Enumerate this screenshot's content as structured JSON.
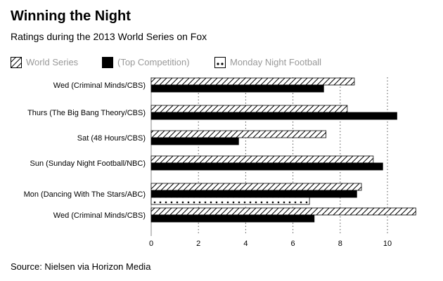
{
  "title": "Winning the Night",
  "subtitle": "Ratings during the 2013 World Series on Fox",
  "source": "Source: Nielsen via Horizon Media",
  "legend": [
    {
      "name": "World Series",
      "pattern": "hatch"
    },
    {
      "name": "(Top Competition)",
      "pattern": "solid"
    },
    {
      "name": "Monday Night Football",
      "pattern": "dots"
    }
  ],
  "chart_data": {
    "type": "bar",
    "orientation": "horizontal",
    "title": "Winning the Night",
    "subtitle": "Ratings during the 2013 World Series on Fox",
    "xlabel": "",
    "ylabel": "",
    "xlim": [
      0,
      11.4
    ],
    "xticks": [
      0,
      2,
      4,
      6,
      8,
      10
    ],
    "grid": "vertical dotted",
    "legend_position": "top-left",
    "categories": [
      "Wed (Criminal Minds/CBS)",
      "Thurs (The Big Bang Theory/CBS)",
      "Sat (48 Hours/CBS)",
      "Sun (Sunday Night Football/NBC)",
      "Mon (Dancing With The Stars/ABC)",
      "Wed (Criminal Minds/CBS)"
    ],
    "series": [
      {
        "name": "World Series",
        "values": [
          8.6,
          8.3,
          7.4,
          9.4,
          8.9,
          11.2
        ]
      },
      {
        "name": "(Top Competition)",
        "values": [
          7.3,
          10.4,
          3.7,
          9.8,
          8.7,
          6.9
        ]
      },
      {
        "name": "Monday Night Football",
        "values": [
          null,
          null,
          null,
          null,
          6.7,
          null
        ]
      }
    ],
    "colors": {
      "ink": "#000000",
      "muted": "#999999",
      "grid": "#555555",
      "axis": "#888888"
    }
  }
}
